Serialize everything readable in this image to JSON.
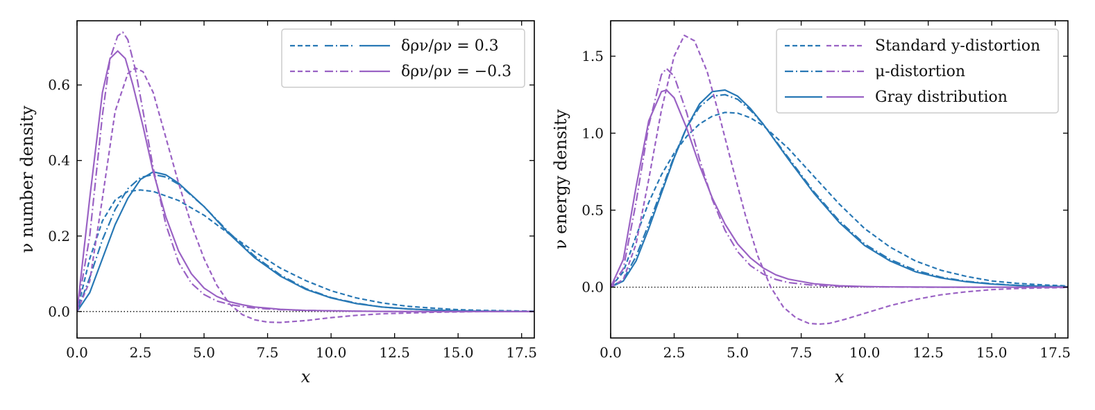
{
  "colors": {
    "blue": "#2878b5",
    "purple": "#9a62c4",
    "zero_line": "#000000"
  },
  "chart_data": [
    {
      "type": "line",
      "xlabel": "x",
      "ylabel": "ν number density",
      "xlim": [
        0,
        18
      ],
      "ylim": [
        -0.07,
        0.77
      ],
      "xticks": [
        0.0,
        2.5,
        5.0,
        7.5,
        10.0,
        12.5,
        15.0,
        17.5
      ],
      "xtick_labels": [
        "0.0",
        "2.5",
        "5.0",
        "7.5",
        "10.0",
        "12.5",
        "15.0",
        "17.5"
      ],
      "yticks": [
        0.0,
        0.2,
        0.4,
        0.6
      ],
      "ytick_labels": [
        "0.0",
        "0.2",
        "0.4",
        "0.6"
      ],
      "legend_position": "top-right",
      "legend": [
        {
          "label": "δρν/ρν = 0.3",
          "color": "blue"
        },
        {
          "label": "δρν/ρν = −0.3",
          "color": "purple"
        }
      ],
      "series": [
        {
          "color": "blue",
          "style": "dashed",
          "x": [
            0,
            0.5,
            1,
            1.5,
            2,
            2.5,
            3,
            4,
            5,
            6,
            7,
            8,
            9,
            10,
            11,
            12,
            13,
            14,
            15,
            16,
            17,
            18
          ],
          "y": [
            0,
            0.14,
            0.24,
            0.295,
            0.318,
            0.322,
            0.318,
            0.294,
            0.255,
            0.205,
            0.158,
            0.115,
            0.082,
            0.055,
            0.036,
            0.023,
            0.014,
            0.009,
            0.005,
            0.003,
            0.002,
            0.001
          ]
        },
        {
          "color": "blue",
          "style": "dashdot",
          "x": [
            0,
            0.5,
            1,
            1.5,
            2,
            2.5,
            3,
            3.5,
            4,
            5,
            6,
            7,
            8,
            9,
            10,
            11,
            12,
            13,
            14,
            15,
            16,
            17,
            18
          ],
          "y": [
            0,
            0.09,
            0.19,
            0.27,
            0.325,
            0.355,
            0.363,
            0.356,
            0.337,
            0.278,
            0.208,
            0.146,
            0.097,
            0.061,
            0.037,
            0.022,
            0.012,
            0.007,
            0.004,
            0.002,
            0.001,
            0.0005,
            0
          ]
        },
        {
          "color": "blue",
          "style": "solid",
          "x": [
            0,
            0.5,
            1,
            1.5,
            2,
            2.5,
            3,
            3.5,
            4,
            5,
            6,
            7,
            8,
            9,
            10,
            11,
            12,
            13,
            14,
            15,
            16,
            17,
            18
          ],
          "y": [
            0,
            0.05,
            0.14,
            0.23,
            0.3,
            0.35,
            0.37,
            0.362,
            0.34,
            0.278,
            0.205,
            0.142,
            0.094,
            0.059,
            0.036,
            0.021,
            0.012,
            0.007,
            0.004,
            0.002,
            0.001,
            0.0005,
            0
          ]
        },
        {
          "color": "purple",
          "style": "dashed",
          "x": [
            0,
            0.5,
            1,
            1.5,
            2,
            2.3,
            2.6,
            3,
            3.5,
            4,
            4.5,
            5,
            5.5,
            6,
            6.5,
            7,
            7.5,
            8,
            9,
            10,
            11,
            12,
            13,
            14,
            15,
            16,
            17,
            18
          ],
          "y": [
            0,
            0.08,
            0.3,
            0.53,
            0.63,
            0.645,
            0.635,
            0.58,
            0.46,
            0.34,
            0.23,
            0.14,
            0.07,
            0.02,
            -0.008,
            -0.022,
            -0.028,
            -0.029,
            -0.024,
            -0.016,
            -0.01,
            -0.006,
            -0.004,
            -0.002,
            -0.001,
            0,
            0,
            0
          ]
        },
        {
          "color": "purple",
          "style": "dashdot",
          "x": [
            0,
            0.5,
            1,
            1.3,
            1.6,
            1.8,
            2,
            2.3,
            2.6,
            3,
            3.5,
            4,
            4.5,
            5,
            5.5,
            6,
            6.5,
            7,
            8,
            9,
            10,
            11,
            12,
            13,
            14,
            15,
            16,
            17,
            18
          ],
          "y": [
            0,
            0.2,
            0.52,
            0.67,
            0.73,
            0.74,
            0.72,
            0.64,
            0.53,
            0.38,
            0.23,
            0.13,
            0.075,
            0.045,
            0.028,
            0.019,
            0.013,
            0.009,
            0.005,
            0.003,
            0.002,
            0.001,
            0.0005,
            0,
            0,
            0,
            0,
            0,
            0
          ]
        },
        {
          "color": "purple",
          "style": "solid",
          "x": [
            0,
            0.5,
            1,
            1.3,
            1.6,
            1.9,
            2.2,
            2.6,
            3,
            3.5,
            4,
            4.5,
            5,
            5.5,
            6,
            6.5,
            7,
            8,
            9,
            10,
            11,
            12,
            13,
            14,
            15,
            16,
            17,
            18
          ],
          "y": [
            0,
            0.3,
            0.58,
            0.67,
            0.69,
            0.67,
            0.6,
            0.49,
            0.37,
            0.25,
            0.16,
            0.1,
            0.062,
            0.04,
            0.026,
            0.018,
            0.012,
            0.006,
            0.003,
            0.002,
            0.001,
            0.0005,
            0,
            0,
            0,
            0,
            0,
            0
          ]
        }
      ]
    },
    {
      "type": "line",
      "xlabel": "x",
      "ylabel": "ν energy density",
      "xlim": [
        0,
        18
      ],
      "ylim": [
        -0.33,
        1.73
      ],
      "xticks": [
        0.0,
        2.5,
        5.0,
        7.5,
        10.0,
        12.5,
        15.0,
        17.5
      ],
      "xtick_labels": [
        "0.0",
        "2.5",
        "5.0",
        "7.5",
        "10.0",
        "12.5",
        "15.0",
        "17.5"
      ],
      "yticks": [
        0.0,
        0.5,
        1.0,
        1.5
      ],
      "ytick_labels": [
        "0.0",
        "0.5",
        "1.0",
        "1.5"
      ],
      "legend_position": "top-right",
      "legend": [
        {
          "label": "Standard y-distortion",
          "style": "dashed"
        },
        {
          "label": "μ-distortion",
          "style": "dashdot"
        },
        {
          "label": "Gray distribution",
          "style": "solid"
        }
      ],
      "series": [
        {
          "color": "blue",
          "style": "dashed",
          "x": [
            0,
            0.5,
            1,
            1.5,
            2,
            2.5,
            3,
            3.5,
            4,
            4.5,
            5,
            5.5,
            6,
            7,
            8,
            9,
            10,
            11,
            12,
            13,
            14,
            15,
            16,
            17,
            18
          ],
          "y": [
            0,
            0.1,
            0.33,
            0.55,
            0.73,
            0.87,
            0.98,
            1.06,
            1.11,
            1.135,
            1.13,
            1.1,
            1.05,
            0.9,
            0.72,
            0.54,
            0.38,
            0.26,
            0.17,
            0.11,
            0.07,
            0.04,
            0.025,
            0.015,
            0.008
          ]
        },
        {
          "color": "blue",
          "style": "dashdot",
          "x": [
            0,
            0.5,
            1,
            1.5,
            2,
            2.5,
            3,
            3.5,
            4,
            4.5,
            5,
            5.5,
            6,
            7,
            8,
            9,
            10,
            11,
            12,
            13,
            14,
            15,
            16,
            17,
            18
          ],
          "y": [
            0,
            0.05,
            0.2,
            0.41,
            0.63,
            0.85,
            1.04,
            1.17,
            1.24,
            1.25,
            1.22,
            1.15,
            1.06,
            0.84,
            0.62,
            0.43,
            0.28,
            0.18,
            0.11,
            0.065,
            0.038,
            0.022,
            0.012,
            0.007,
            0.004
          ]
        },
        {
          "color": "blue",
          "style": "solid",
          "x": [
            0,
            0.5,
            1,
            1.5,
            2,
            2.5,
            3,
            3.5,
            4,
            4.5,
            5,
            5.5,
            6,
            7,
            8,
            9,
            10,
            11,
            12,
            13,
            14,
            15,
            16,
            17,
            18
          ],
          "y": [
            0,
            0.04,
            0.17,
            0.38,
            0.61,
            0.84,
            1.04,
            1.19,
            1.27,
            1.28,
            1.24,
            1.16,
            1.06,
            0.83,
            0.61,
            0.42,
            0.27,
            0.17,
            0.1,
            0.06,
            0.035,
            0.02,
            0.011,
            0.006,
            0.003
          ]
        },
        {
          "color": "purple",
          "style": "dashed",
          "x": [
            0,
            0.5,
            1,
            1.5,
            2,
            2.5,
            2.9,
            3.3,
            3.8,
            4.3,
            4.8,
            5.3,
            5.8,
            6.3,
            6.8,
            7.3,
            7.8,
            8.2,
            8.6,
            9.2,
            10,
            11,
            12,
            13,
            14,
            15,
            16,
            17,
            18
          ],
          "y": [
            0,
            0.05,
            0.28,
            0.7,
            1.15,
            1.5,
            1.635,
            1.6,
            1.4,
            1.1,
            0.78,
            0.47,
            0.2,
            0,
            -0.13,
            -0.2,
            -0.235,
            -0.24,
            -0.235,
            -0.21,
            -0.17,
            -0.12,
            -0.08,
            -0.05,
            -0.03,
            -0.016,
            -0.009,
            -0.005,
            -0.002
          ]
        },
        {
          "color": "purple",
          "style": "dashdot",
          "x": [
            0,
            0.5,
            1,
            1.5,
            2,
            2.2,
            2.5,
            3,
            3.5,
            4,
            4.5,
            5,
            5.5,
            6,
            6.5,
            7,
            8,
            9,
            10,
            11,
            12,
            13,
            14,
            15,
            16,
            17,
            18
          ],
          "y": [
            0,
            0.12,
            0.55,
            1.05,
            1.38,
            1.42,
            1.37,
            1.13,
            0.83,
            0.57,
            0.37,
            0.23,
            0.14,
            0.085,
            0.05,
            0.03,
            0.012,
            0.005,
            0.002,
            0.001,
            0,
            0,
            0,
            0,
            0,
            0,
            0
          ]
        },
        {
          "color": "purple",
          "style": "solid",
          "x": [
            0,
            0.5,
            1,
            1.5,
            2,
            2.2,
            2.5,
            3,
            3.5,
            4,
            4.5,
            5,
            5.5,
            6,
            6.5,
            7,
            8,
            9,
            10,
            11,
            12,
            13,
            14,
            15,
            16,
            17,
            18
          ],
          "y": [
            0,
            0.18,
            0.65,
            1.08,
            1.27,
            1.28,
            1.23,
            1.03,
            0.79,
            0.58,
            0.41,
            0.28,
            0.19,
            0.125,
            0.08,
            0.052,
            0.022,
            0.009,
            0.004,
            0.002,
            0.001,
            0,
            0,
            0,
            0,
            0,
            0
          ]
        }
      ]
    }
  ]
}
